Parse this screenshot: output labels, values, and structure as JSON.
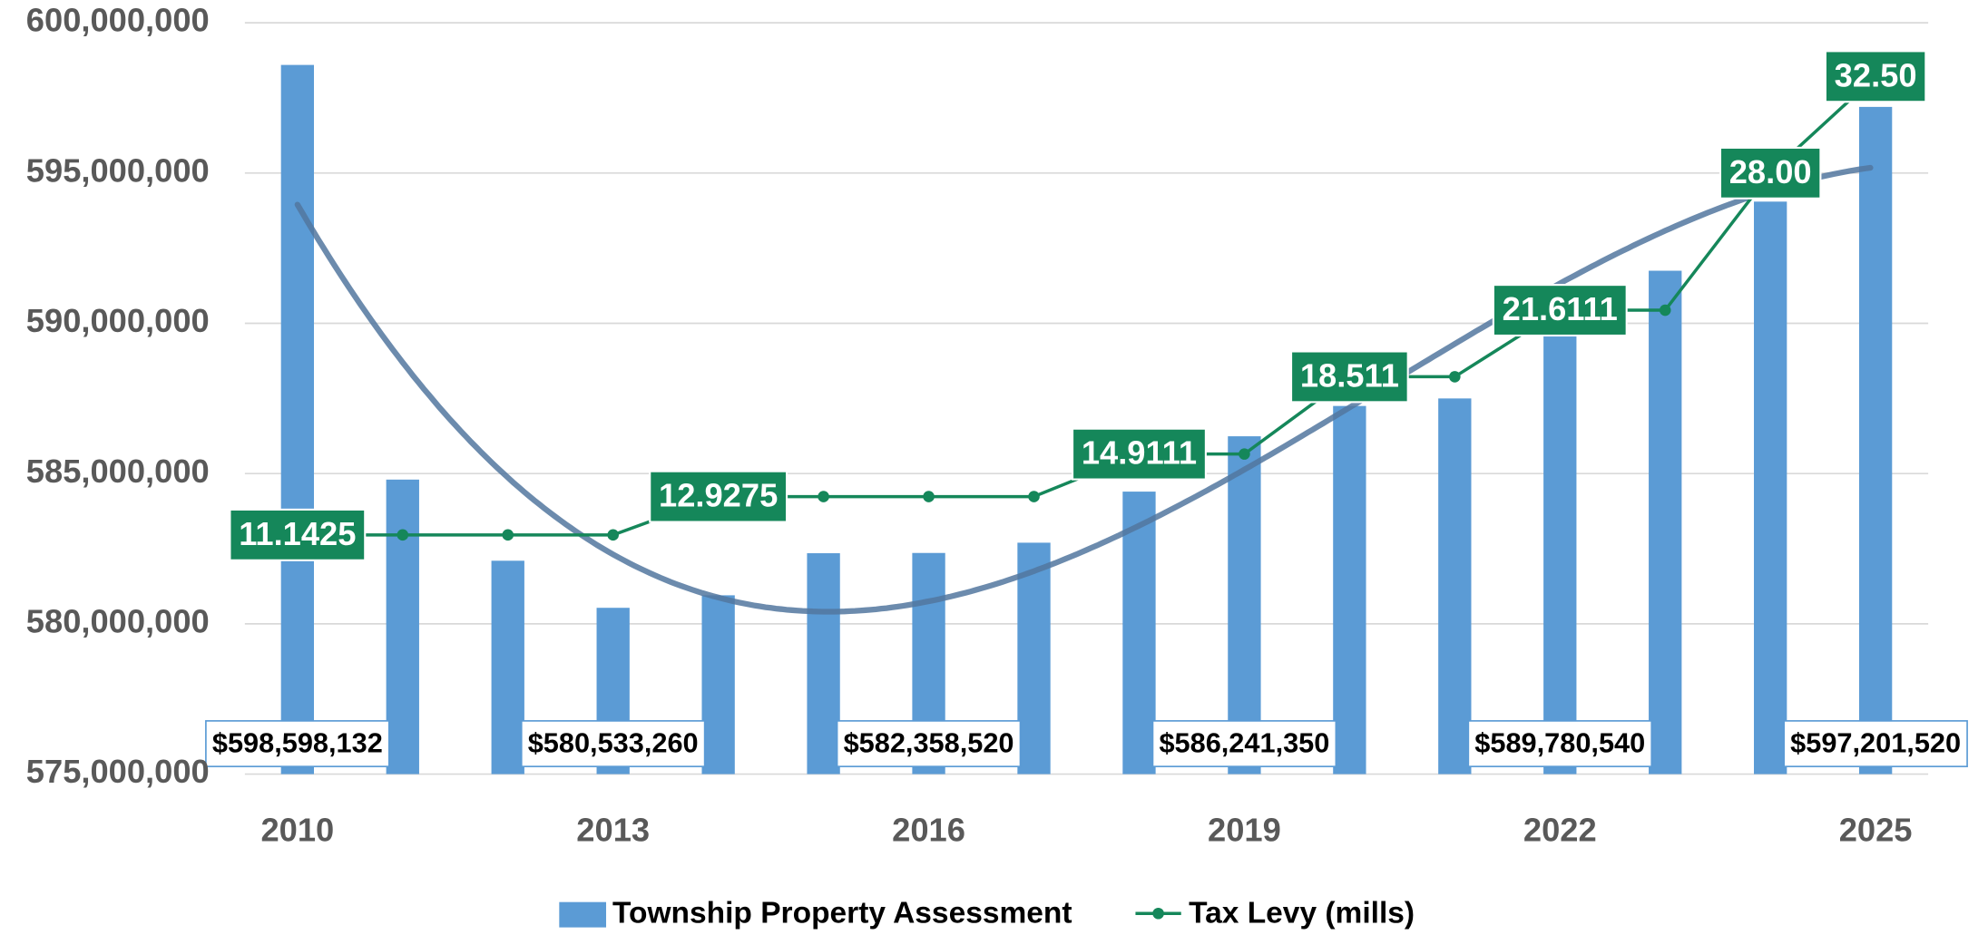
{
  "chart_data": {
    "type": "bar",
    "categories": [
      "2010",
      null,
      null,
      "2013",
      null,
      null,
      "2016",
      null,
      null,
      "2019",
      null,
      null,
      "2022",
      null,
      null,
      "2025"
    ],
    "series": [
      {
        "name": "Township Property Assessment",
        "type": "bar",
        "color": "#5b9bd5",
        "values": [
          598598132,
          584800000,
          582100000,
          580533260,
          580950000,
          582350000,
          582358520,
          582700000,
          584400000,
          586241350,
          587250000,
          587500000,
          589780540,
          591750000,
          594050000,
          597201520
        ],
        "value_labels": [
          "$598,598,132",
          null,
          null,
          "$580,533,260",
          null,
          null,
          "$582,358,520",
          null,
          null,
          "$586,241,350",
          null,
          null,
          "$589,780,540",
          null,
          null,
          "$597,201,520"
        ]
      },
      {
        "name": "Tax Levy (mills)",
        "type": "line",
        "axis": "y2",
        "color": "#15875a",
        "values": [
          11.1425,
          11.1425,
          11.1425,
          11.1425,
          12.9275,
          12.9275,
          12.9275,
          12.9275,
          14.9111,
          14.9111,
          18.511,
          18.511,
          21.6111,
          21.6111,
          28,
          32.5
        ],
        "value_labels": [
          "11.1425",
          null,
          null,
          null,
          "12.9275",
          null,
          null,
          null,
          "14.9111",
          null,
          "18.511",
          null,
          "21.6111",
          null,
          "28.00",
          "32.50"
        ]
      }
    ],
    "ylim": [
      575000000,
      600000000
    ],
    "yticks": [
      {
        "value": 575000000,
        "label": "575,000,000"
      },
      {
        "value": 580000000,
        "label": "580,000,000"
      },
      {
        "value": 585000000,
        "label": "585,000,000"
      },
      {
        "value": 590000000,
        "label": "590,000,000"
      },
      {
        "value": 595000000,
        "label": "595,000,000"
      },
      {
        "value": 600000000,
        "label": "600,000,000"
      }
    ],
    "y2lim": [
      0,
      35
    ],
    "grid": true,
    "legend": "bottom",
    "trendline": {
      "series": 0,
      "type": "polynomial",
      "order": 3,
      "color": "#52779f"
    }
  }
}
